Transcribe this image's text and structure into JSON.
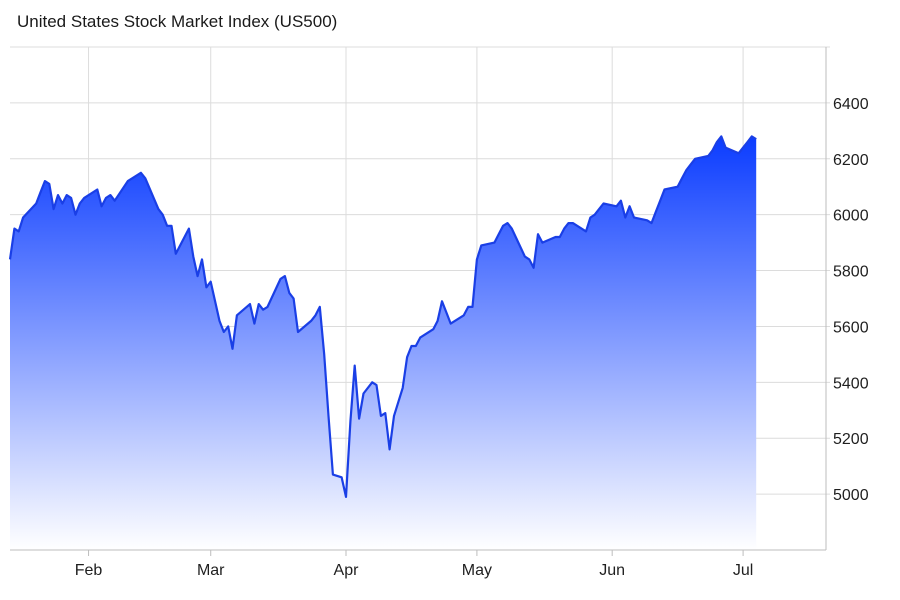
{
  "chart_data": {
    "type": "area",
    "title": "United States Stock Market Index (US500)",
    "xlabel": "",
    "ylabel": "",
    "ylim": [
      4800,
      6600
    ],
    "y_ticks": [
      5000,
      5200,
      5400,
      5600,
      5800,
      6000,
      6200,
      6400
    ],
    "x_tick_labels": [
      {
        "label": "Feb",
        "date": "2025-02-01"
      },
      {
        "label": "Mar",
        "date": "2025-03-01"
      },
      {
        "label": "Apr",
        "date": "2025-04-01"
      },
      {
        "label": "May",
        "date": "2025-05-01"
      },
      {
        "label": "Jun",
        "date": "2025-06-01"
      },
      {
        "label": "Jul",
        "date": "2025-07-01"
      }
    ],
    "xlim": [
      "2025-01-14",
      "2025-07-20"
    ],
    "grid": true,
    "colors": {
      "line": "#1a3fe6",
      "fill_top": "#0b3cff",
      "fill_bottom": "#ffffff",
      "grid": "#dcdcdc"
    },
    "series": [
      {
        "points": [
          [
            "2025-01-14",
            5840
          ],
          [
            "2025-01-15",
            5950
          ],
          [
            "2025-01-16",
            5940
          ],
          [
            "2025-01-17",
            5990
          ],
          [
            "2025-01-20",
            6040
          ],
          [
            "2025-01-21",
            6080
          ],
          [
            "2025-01-22",
            6120
          ],
          [
            "2025-01-23",
            6110
          ],
          [
            "2025-01-24",
            6020
          ],
          [
            "2025-01-25",
            6070
          ],
          [
            "2025-01-26",
            6040
          ],
          [
            "2025-01-27",
            6070
          ],
          [
            "2025-01-28",
            6060
          ],
          [
            "2025-01-29",
            6000
          ],
          [
            "2025-01-30",
            6040
          ],
          [
            "2025-01-31",
            6060
          ],
          [
            "2025-02-03",
            6090
          ],
          [
            "2025-02-04",
            6030
          ],
          [
            "2025-02-05",
            6060
          ],
          [
            "2025-02-06",
            6070
          ],
          [
            "2025-02-07",
            6050
          ],
          [
            "2025-02-10",
            6120
          ],
          [
            "2025-02-11",
            6130
          ],
          [
            "2025-02-13",
            6150
          ],
          [
            "2025-02-14",
            6130
          ],
          [
            "2025-02-17",
            6020
          ],
          [
            "2025-02-18",
            6000
          ],
          [
            "2025-02-19",
            5960
          ],
          [
            "2025-02-20",
            5960
          ],
          [
            "2025-02-21",
            5860
          ],
          [
            "2025-02-24",
            5950
          ],
          [
            "2025-02-25",
            5850
          ],
          [
            "2025-02-26",
            5780
          ],
          [
            "2025-02-27",
            5840
          ],
          [
            "2025-02-28",
            5740
          ],
          [
            "2025-03-01",
            5760
          ],
          [
            "2025-03-03",
            5620
          ],
          [
            "2025-03-04",
            5580
          ],
          [
            "2025-03-05",
            5600
          ],
          [
            "2025-03-06",
            5520
          ],
          [
            "2025-03-07",
            5640
          ],
          [
            "2025-03-10",
            5680
          ],
          [
            "2025-03-11",
            5610
          ],
          [
            "2025-03-12",
            5680
          ],
          [
            "2025-03-13",
            5660
          ],
          [
            "2025-03-14",
            5670
          ],
          [
            "2025-03-17",
            5770
          ],
          [
            "2025-03-18",
            5780
          ],
          [
            "2025-03-19",
            5720
          ],
          [
            "2025-03-20",
            5700
          ],
          [
            "2025-03-21",
            5580
          ],
          [
            "2025-03-24",
            5620
          ],
          [
            "2025-03-25",
            5640
          ],
          [
            "2025-03-26",
            5670
          ],
          [
            "2025-03-27",
            5500
          ],
          [
            "2025-03-28",
            5280
          ],
          [
            "2025-03-29",
            5070
          ],
          [
            "2025-03-31",
            5060
          ],
          [
            "2025-04-01",
            4990
          ],
          [
            "2025-04-02",
            5260
          ],
          [
            "2025-04-03",
            5460
          ],
          [
            "2025-04-04",
            5270
          ],
          [
            "2025-04-05",
            5360
          ],
          [
            "2025-04-07",
            5400
          ],
          [
            "2025-04-08",
            5390
          ],
          [
            "2025-04-09",
            5280
          ],
          [
            "2025-04-10",
            5290
          ],
          [
            "2025-04-11",
            5160
          ],
          [
            "2025-04-12",
            5280
          ],
          [
            "2025-04-14",
            5380
          ],
          [
            "2025-04-15",
            5490
          ],
          [
            "2025-04-16",
            5530
          ],
          [
            "2025-04-17",
            5530
          ],
          [
            "2025-04-18",
            5560
          ],
          [
            "2025-04-21",
            5590
          ],
          [
            "2025-04-22",
            5620
          ],
          [
            "2025-04-23",
            5690
          ],
          [
            "2025-04-24",
            5650
          ],
          [
            "2025-04-25",
            5610
          ],
          [
            "2025-04-28",
            5640
          ],
          [
            "2025-04-29",
            5670
          ],
          [
            "2025-04-30",
            5670
          ],
          [
            "2025-05-01",
            5840
          ],
          [
            "2025-05-02",
            5890
          ],
          [
            "2025-05-05",
            5900
          ],
          [
            "2025-05-06",
            5930
          ],
          [
            "2025-05-07",
            5960
          ],
          [
            "2025-05-08",
            5970
          ],
          [
            "2025-05-09",
            5950
          ],
          [
            "2025-05-12",
            5850
          ],
          [
            "2025-05-13",
            5840
          ],
          [
            "2025-05-14",
            5810
          ],
          [
            "2025-05-15",
            5930
          ],
          [
            "2025-05-16",
            5900
          ],
          [
            "2025-05-19",
            5920
          ],
          [
            "2025-05-20",
            5920
          ],
          [
            "2025-05-21",
            5950
          ],
          [
            "2025-05-22",
            5970
          ],
          [
            "2025-05-23",
            5970
          ],
          [
            "2025-05-26",
            5940
          ],
          [
            "2025-05-27",
            5990
          ],
          [
            "2025-05-28",
            6000
          ],
          [
            "2025-05-29",
            6020
          ],
          [
            "2025-05-30",
            6040
          ],
          [
            "2025-06-02",
            6030
          ],
          [
            "2025-06-03",
            6050
          ],
          [
            "2025-06-04",
            5990
          ],
          [
            "2025-06-05",
            6030
          ],
          [
            "2025-06-06",
            5990
          ],
          [
            "2025-06-09",
            5980
          ],
          [
            "2025-06-10",
            5970
          ],
          [
            "2025-06-11",
            6010
          ],
          [
            "2025-06-12",
            6050
          ],
          [
            "2025-06-13",
            6090
          ],
          [
            "2025-06-16",
            6100
          ],
          [
            "2025-06-17",
            6130
          ],
          [
            "2025-06-18",
            6160
          ],
          [
            "2025-06-19",
            6180
          ],
          [
            "2025-06-20",
            6200
          ],
          [
            "2025-06-23",
            6210
          ],
          [
            "2025-06-24",
            6230
          ],
          [
            "2025-06-25",
            6260
          ],
          [
            "2025-06-26",
            6280
          ],
          [
            "2025-06-27",
            6240
          ],
          [
            "2025-06-30",
            6220
          ],
          [
            "2025-07-01",
            6240
          ],
          [
            "2025-07-02",
            6260
          ],
          [
            "2025-07-03",
            6280
          ],
          [
            "2025-07-04",
            6270
          ]
        ]
      }
    ]
  }
}
